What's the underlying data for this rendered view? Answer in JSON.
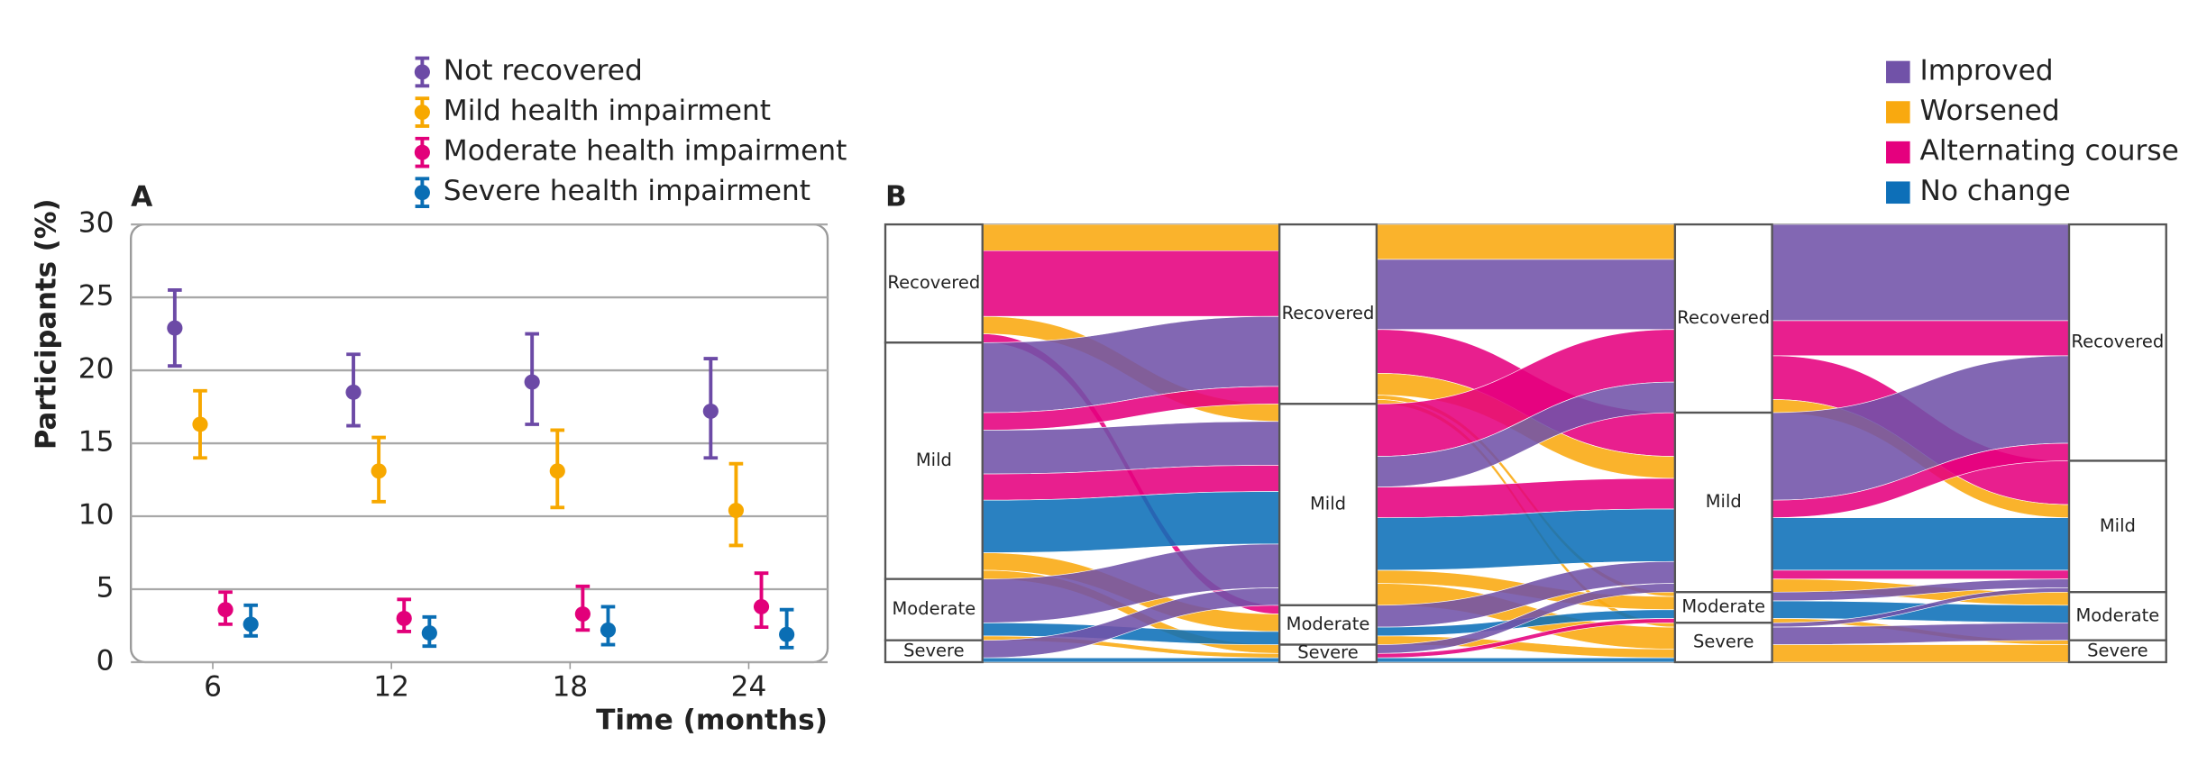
{
  "chart_data": [
    {
      "type": "errorbar",
      "label": "A",
      "ylabel": "Participants (%)",
      "xlabel": "Time (months)",
      "x": [
        6,
        12,
        18,
        24
      ],
      "xlim": [
        3.25,
        26.65
      ],
      "xticks": [
        6,
        12,
        18,
        24
      ],
      "ylim": [
        0,
        30
      ],
      "yticks": [
        0,
        5,
        10,
        15,
        20,
        25,
        30
      ],
      "grid": true,
      "series": [
        {
          "name": "Not recovered",
          "color": "#6c4aa6",
          "values": [
            22.9,
            18.5,
            19.2,
            17.2
          ],
          "lower": [
            20.3,
            16.2,
            16.3,
            14.0
          ],
          "upper": [
            25.5,
            21.1,
            22.5,
            20.8
          ]
        },
        {
          "name": "Mild health impairment",
          "color": "#f7a800",
          "values": [
            16.3,
            13.1,
            13.1,
            10.4
          ],
          "lower": [
            14.0,
            11.0,
            10.6,
            8.0
          ],
          "upper": [
            18.6,
            15.4,
            15.9,
            13.6
          ]
        },
        {
          "name": "Moderate health impairment",
          "color": "#e2007a",
          "values": [
            3.6,
            3.0,
            3.3,
            3.8
          ],
          "lower": [
            2.6,
            2.1,
            2.2,
            2.4
          ],
          "upper": [
            4.8,
            4.3,
            5.2,
            6.1
          ]
        },
        {
          "name": "Severe health impairment",
          "color": "#0a6eb4",
          "values": [
            2.6,
            2.0,
            2.2,
            1.9
          ],
          "lower": [
            1.8,
            1.1,
            1.2,
            1.0
          ],
          "upper": [
            3.9,
            3.1,
            3.8,
            3.6
          ]
        }
      ]
    },
    {
      "type": "alluvial",
      "label": "B",
      "series": [
        {
          "name": "Improved",
          "color": "#7152a8"
        },
        {
          "name": "Worsened",
          "color": "#f9a90f"
        },
        {
          "name": "Alternating course",
          "color": "#e5007e"
        },
        {
          "name": "No change",
          "color": "#0d6fb8"
        }
      ],
      "stages": [
        {
          "nodes": [
            {
              "label": "Recovered",
              "value": 27
            },
            {
              "label": "Mild",
              "value": 54
            },
            {
              "label": "Moderate",
              "value": 14
            },
            {
              "label": "Severe",
              "value": 5
            }
          ]
        },
        {
          "nodes": [
            {
              "label": "Recovered",
              "value": 41
            },
            {
              "label": "Mild",
              "value": 46
            },
            {
              "label": "Moderate",
              "value": 9
            },
            {
              "label": "Severe",
              "value": 4
            }
          ]
        },
        {
          "nodes": [
            {
              "label": "Recovered",
              "value": 43
            },
            {
              "label": "Mild",
              "value": 41
            },
            {
              "label": "Moderate",
              "value": 7
            },
            {
              "label": "Severe",
              "value": 9
            }
          ]
        },
        {
          "nodes": [
            {
              "label": "Recovered",
              "value": 54
            },
            {
              "label": "Mild",
              "value": 30
            },
            {
              "label": "Moderate",
              "value": 11
            },
            {
              "label": "Severe",
              "value": 5
            }
          ]
        }
      ],
      "flows": [
        [
          {
            "source": 0,
            "target": 0,
            "value": 6,
            "series": 1
          },
          {
            "source": 0,
            "target": 0,
            "value": 15,
            "series": 2
          },
          {
            "source": 0,
            "target": 1,
            "value": 4,
            "series": 1
          },
          {
            "source": 0,
            "target": 2,
            "value": 2,
            "series": 2
          },
          {
            "source": 1,
            "target": 0,
            "value": 16,
            "series": 0
          },
          {
            "source": 1,
            "target": 0,
            "value": 4,
            "series": 2
          },
          {
            "source": 1,
            "target": 1,
            "value": 10,
            "series": 0
          },
          {
            "source": 1,
            "target": 1,
            "value": 6,
            "series": 2
          },
          {
            "source": 1,
            "target": 1,
            "value": 12,
            "series": 3
          },
          {
            "source": 1,
            "target": 2,
            "value": 4,
            "series": 1
          },
          {
            "source": 1,
            "target": 3,
            "value": 2,
            "series": 1
          },
          {
            "source": 2,
            "target": 1,
            "value": 10,
            "series": 0
          },
          {
            "source": 2,
            "target": 2,
            "value": 3,
            "series": 3
          },
          {
            "source": 2,
            "target": 3,
            "value": 1,
            "series": 1
          },
          {
            "source": 3,
            "target": 1,
            "value": 4,
            "series": 0
          },
          {
            "source": 3,
            "target": 3,
            "value": 1,
            "series": 3
          }
        ],
        [
          {
            "source": 0,
            "target": 0,
            "value": 8,
            "series": 1
          },
          {
            "source": 0,
            "target": 0,
            "value": 16,
            "series": 0
          },
          {
            "source": 0,
            "target": 1,
            "value": 10,
            "series": 2
          },
          {
            "source": 0,
            "target": 1,
            "value": 5,
            "series": 1
          },
          {
            "source": 0,
            "target": 2,
            "value": 1,
            "series": 1
          },
          {
            "source": 0,
            "target": 3,
            "value": 1,
            "series": 1
          },
          {
            "source": 1,
            "target": 0,
            "value": 12,
            "series": 2
          },
          {
            "source": 1,
            "target": 0,
            "value": 7,
            "series": 0
          },
          {
            "source": 1,
            "target": 1,
            "value": 7,
            "series": 2
          },
          {
            "source": 1,
            "target": 1,
            "value": 12,
            "series": 3
          },
          {
            "source": 1,
            "target": 2,
            "value": 3,
            "series": 1
          },
          {
            "source": 1,
            "target": 3,
            "value": 5,
            "series": 1
          },
          {
            "source": 2,
            "target": 1,
            "value": 5,
            "series": 0
          },
          {
            "source": 2,
            "target": 2,
            "value": 2,
            "series": 3
          },
          {
            "source": 2,
            "target": 3,
            "value": 2,
            "series": 1
          },
          {
            "source": 3,
            "target": 1,
            "value": 2,
            "series": 0
          },
          {
            "source": 3,
            "target": 2,
            "value": 1,
            "series": 2
          },
          {
            "source": 3,
            "target": 3,
            "value": 1,
            "series": 3
          }
        ],
        [
          {
            "source": 0,
            "target": 0,
            "value": 22,
            "series": 0
          },
          {
            "source": 0,
            "target": 0,
            "value": 8,
            "series": 2
          },
          {
            "source": 0,
            "target": 1,
            "value": 10,
            "series": 2
          },
          {
            "source": 0,
            "target": 1,
            "value": 3,
            "series": 1
          },
          {
            "source": 1,
            "target": 0,
            "value": 20,
            "series": 0
          },
          {
            "source": 1,
            "target": 0,
            "value": 4,
            "series": 2
          },
          {
            "source": 1,
            "target": 1,
            "value": 12,
            "series": 3
          },
          {
            "source": 1,
            "target": 1,
            "value": 2,
            "series": 2
          },
          {
            "source": 1,
            "target": 2,
            "value": 3,
            "series": 1
          },
          {
            "source": 2,
            "target": 1,
            "value": 2,
            "series": 0
          },
          {
            "source": 2,
            "target": 2,
            "value": 4,
            "series": 3
          },
          {
            "source": 2,
            "target": 3,
            "value": 1,
            "series": 1
          },
          {
            "source": 3,
            "target": 1,
            "value": 1,
            "series": 0
          },
          {
            "source": 3,
            "target": 2,
            "value": 4,
            "series": 0
          },
          {
            "source": 3,
            "target": 3,
            "value": 4,
            "series": 1
          }
        ]
      ]
    }
  ]
}
